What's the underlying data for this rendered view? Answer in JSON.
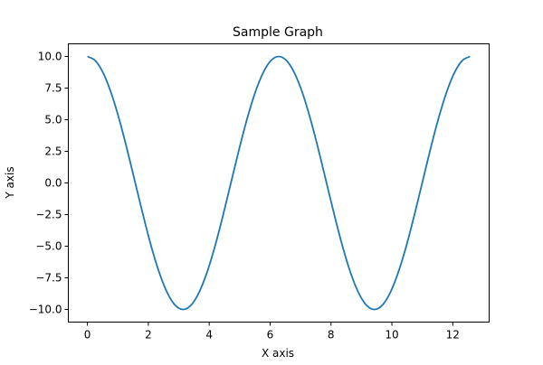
{
  "chart_data": {
    "type": "line",
    "title": "Sample Graph",
    "xlabel": "X axis",
    "ylabel": "Y axis",
    "xlim": [
      -0.628,
      13.195
    ],
    "ylim": [
      -11,
      11
    ],
    "xticks": [
      0,
      2,
      4,
      6,
      8,
      10,
      12
    ],
    "xtick_labels": [
      "0",
      "2",
      "4",
      "6",
      "8",
      "10",
      "12"
    ],
    "yticks": [
      10,
      7.5,
      5,
      2.5,
      0,
      -2.5,
      -5,
      -7.5,
      -10
    ],
    "ytick_labels": [
      "10.0",
      "7.5",
      "5.0",
      "2.5",
      "0.0",
      "−2.5",
      "−5.0",
      "−7.5",
      "−10.0"
    ],
    "grid": false,
    "series": [
      {
        "color": "#1f77b4",
        "x": [
          0,
          0.262,
          0.524,
          0.785,
          1.047,
          1.309,
          1.571,
          1.833,
          2.094,
          2.356,
          2.618,
          2.88,
          3.142,
          3.403,
          3.665,
          3.927,
          4.189,
          4.451,
          4.712,
          4.974,
          5.236,
          5.498,
          5.76,
          6.021,
          6.283,
          6.545,
          6.807,
          7.069,
          7.33,
          7.592,
          7.854,
          8.116,
          8.378,
          8.639,
          8.901,
          9.163,
          9.425,
          9.687,
          9.948,
          10.21,
          10.472,
          10.734,
          10.996,
          11.257,
          11.519,
          11.781,
          12.043,
          12.305,
          12.566
        ],
        "y": [
          10,
          9.66,
          8.66,
          7.07,
          5,
          2.59,
          0,
          -2.59,
          -5,
          -7.07,
          -8.66,
          -9.66,
          -10,
          -9.66,
          -8.66,
          -7.07,
          -5,
          -2.59,
          0,
          2.59,
          5,
          7.07,
          8.66,
          9.66,
          10,
          9.66,
          8.66,
          7.07,
          5,
          2.59,
          0,
          -2.59,
          -5,
          -7.07,
          -8.66,
          -9.66,
          -10,
          -9.66,
          -8.66,
          -7.07,
          -5,
          -2.59,
          0,
          2.59,
          5,
          7.07,
          8.66,
          9.66,
          10
        ]
      }
    ]
  }
}
